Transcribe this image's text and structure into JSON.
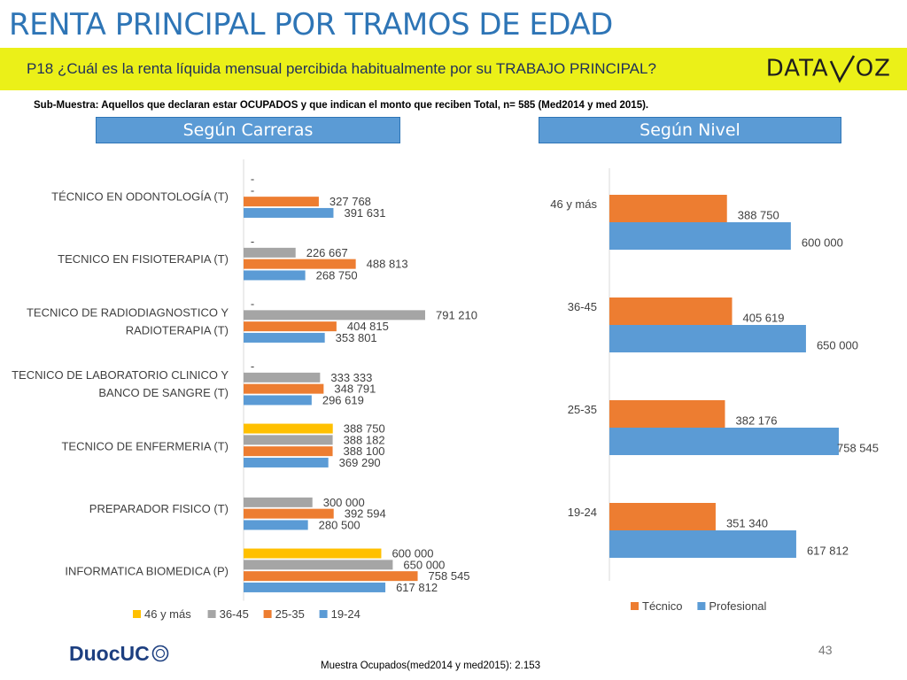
{
  "title": "RENTA PRINCIPAL POR TRAMOS DE EDAD",
  "question": "P18 ¿Cuál es la renta líquida mensual percibida habitualmente por su TRABAJO PRINCIPAL?",
  "logo": {
    "text_left": "DATA",
    "text_right": "OZ",
    "icon": "v-slash-logo"
  },
  "subsample": "Sub-Muestra: Aquellos que declaran estar OCUPADOS y que indican el monto que reciben Total, n= 585 (Med2014 y med 2015).",
  "tabs": {
    "left": "Según Carreras",
    "right": "Según Nivel"
  },
  "colors": {
    "s46": "#ffc000",
    "s3645": "#a5a5a5",
    "s2535": "#ed7d31",
    "s1924": "#5b9bd5",
    "tecnico": "#ed7d31",
    "profesional": "#5b9bd5",
    "title": "#2e75b6",
    "band": "#ebf018"
  },
  "chart_data": [
    {
      "type": "bar",
      "orientation": "horizontal",
      "xlim": [
        0,
        800000
      ],
      "categories": [
        "TÉCNICO EN ODONTOLOGÍA (T)",
        "TECNICO EN FISIOTERAPIA (T)",
        "TECNICO DE RADIODIAGNOSTICO Y RADIOTERAPIA (T)",
        "TECNICO DE LABORATORIO CLINICO Y BANCO DE SANGRE (T)",
        "TECNICO DE ENFERMERIA (T)",
        "PREPARADOR FISICO (T)",
        "INFORMATICA BIOMEDICA (P)"
      ],
      "category_lines": [
        [
          "TÉCNICO EN ODONTOLOGÍA (T)"
        ],
        [
          "TECNICO EN FISIOTERAPIA (T)"
        ],
        [
          "TECNICO DE RADIODIAGNOSTICO Y",
          "RADIOTERAPIA (T)"
        ],
        [
          "TECNICO DE LABORATORIO CLINICO Y",
          "BANCO DE SANGRE (T)"
        ],
        [
          "TECNICO DE ENFERMERIA (T)"
        ],
        [
          "PREPARADOR FISICO (T)"
        ],
        [
          "INFORMATICA BIOMEDICA (P)"
        ]
      ],
      "series": [
        {
          "name": "46 y más",
          "color": "#ffc000",
          "values": [
            null,
            null,
            null,
            null,
            388750,
            null,
            600000
          ],
          "labels": [
            "-",
            "-",
            "-",
            "-",
            "388 750",
            "",
            "600 000"
          ]
        },
        {
          "name": "36-45",
          "color": "#a5a5a5",
          "values": [
            null,
            226667,
            791210,
            333333,
            388182,
            300000,
            650000
          ],
          "labels": [
            "-",
            "226 667",
            "791 210",
            "333 333",
            "388 182",
            "300 000",
            "650 000"
          ]
        },
        {
          "name": "25-35",
          "color": "#ed7d31",
          "values": [
            327768,
            488813,
            404815,
            348791,
            388100,
            392594,
            758545
          ],
          "labels": [
            "327 768",
            "488 813",
            "404 815",
            "348 791",
            "388 100",
            "392 594",
            "758 545"
          ]
        },
        {
          "name": "19-24",
          "color": "#5b9bd5",
          "values": [
            391631,
            268750,
            353801,
            296619,
            369290,
            280500,
            617812
          ],
          "labels": [
            "391 631",
            "268 750",
            "353 801",
            "296 619",
            "369 290",
            "280 500",
            "617 812"
          ]
        }
      ],
      "legend": "bottom"
    },
    {
      "type": "bar",
      "orientation": "horizontal",
      "xlim": [
        0,
        800000
      ],
      "categories": [
        "46 y más",
        "36-45",
        "25-35",
        "19-24"
      ],
      "series": [
        {
          "name": "Técnico",
          "color": "#ed7d31",
          "values": [
            388750,
            405619,
            382176,
            351340
          ],
          "labels": [
            "388 750",
            "405 619",
            "382 176",
            "351 340"
          ]
        },
        {
          "name": "Profesional",
          "color": "#5b9bd5",
          "values": [
            600000,
            650000,
            758545,
            617812
          ],
          "labels": [
            "600 000",
            "650 000",
            "758 545",
            "617 812"
          ]
        }
      ],
      "legend": "bottom"
    }
  ],
  "page_number": "43",
  "footer": "Muestra Ocupados(med2014 y med2015): 2.153",
  "brand": {
    "part1": "Duoc",
    "part2": "UC"
  }
}
